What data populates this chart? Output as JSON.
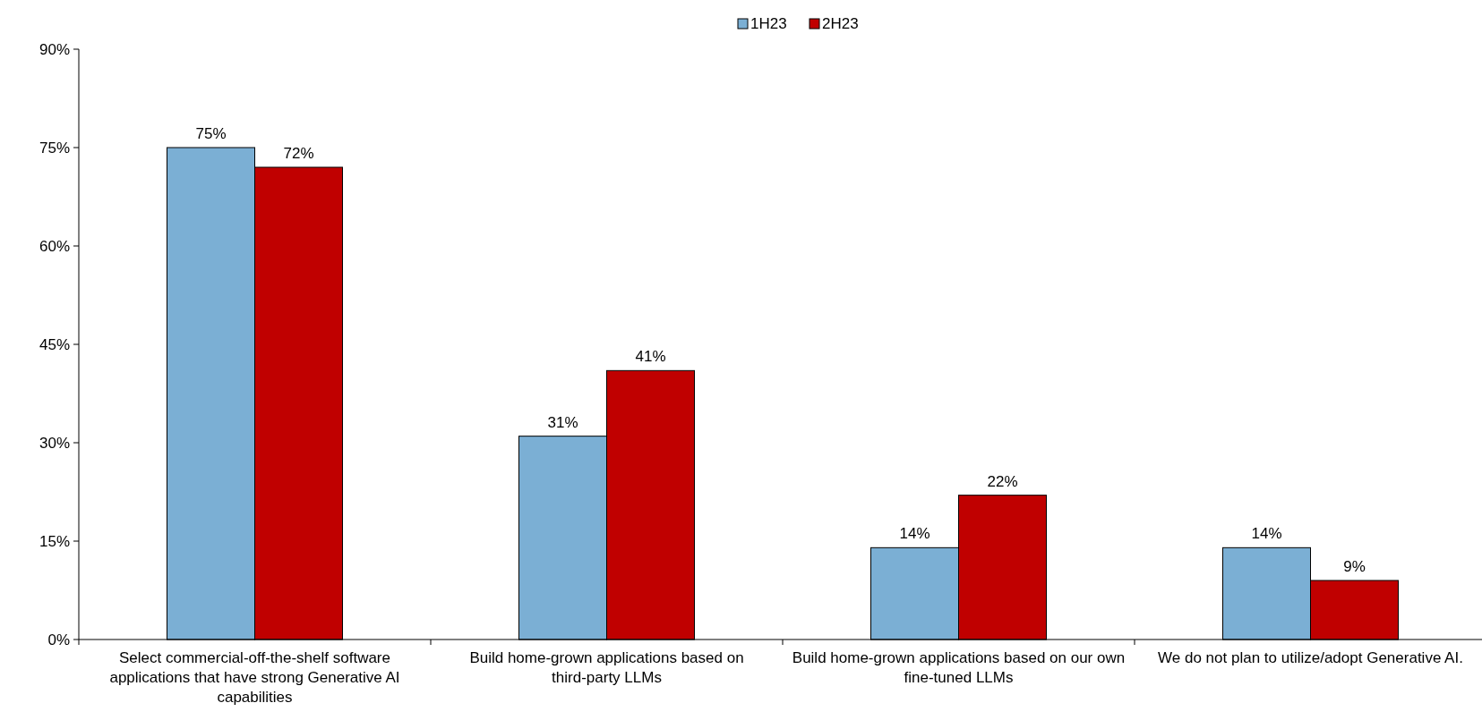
{
  "chart_data": {
    "type": "bar",
    "categories": [
      "Select commercial-off-the-shelf software applications that have strong Generative AI capabilities",
      "Build home-grown applications based on third-party LLMs",
      "Build home-grown applications based on our own fine-tuned LLMs",
      "We do not plan to utilize/adopt Generative AI."
    ],
    "series": [
      {
        "name": "1H23",
        "color": "#7bafd4",
        "values": [
          75,
          31,
          14,
          14
        ]
      },
      {
        "name": "2H23",
        "color": "#c00000",
        "values": [
          72,
          41,
          22,
          9
        ]
      }
    ],
    "ylim": [
      0,
      90
    ],
    "yticks": [
      {
        "value": 0,
        "label": "0%"
      },
      {
        "value": 15,
        "label": "15%"
      },
      {
        "value": 30,
        "label": "30%"
      },
      {
        "value": 45,
        "label": "45%"
      },
      {
        "value": 60,
        "label": "60%"
      },
      {
        "value": 75,
        "label": "75%"
      },
      {
        "value": 90,
        "label": "90%"
      }
    ],
    "value_labels": [
      [
        "75%",
        "31%",
        "14%",
        "14%"
      ],
      [
        "72%",
        "41%",
        "22%",
        "9%"
      ]
    ],
    "grid": false,
    "legend": "top"
  }
}
